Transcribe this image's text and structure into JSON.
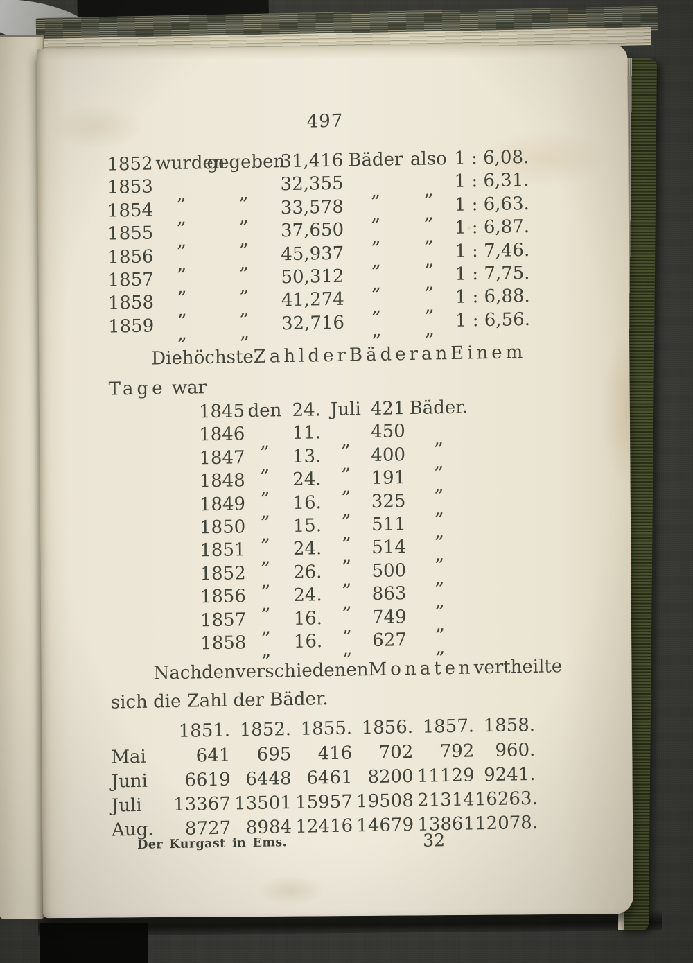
{
  "page": {
    "number": "497"
  },
  "table1": {
    "rows": [
      {
        "year": "1852",
        "w1": "wurden",
        "w2": "gegeben",
        "count": "31,416",
        "unit": "Bäder",
        "also": "also",
        "ratio": "1 : 6,08."
      },
      {
        "year": "1853",
        "w1": "„",
        "w2": "„",
        "count": "32,355",
        "unit": "„",
        "also": "„",
        "ratio": "1 : 6,31."
      },
      {
        "year": "1854",
        "w1": "„",
        "w2": "„",
        "count": "33,578",
        "unit": "„",
        "also": "„",
        "ratio": "1 : 6,63."
      },
      {
        "year": "1855",
        "w1": "„",
        "w2": "„",
        "count": "37,650",
        "unit": "„",
        "also": "„",
        "ratio": "1 : 6,87."
      },
      {
        "year": "1856",
        "w1": "„",
        "w2": "„",
        "count": "45,937",
        "unit": "„",
        "also": "„",
        "ratio": "1 : 7,46."
      },
      {
        "year": "1857",
        "w1": "„",
        "w2": "„",
        "count": "50,312",
        "unit": "„",
        "also": "„",
        "ratio": "1 : 7,75."
      },
      {
        "year": "1858",
        "w1": "„",
        "w2": "„",
        "count": "41,274",
        "unit": "„",
        "also": "„",
        "ratio": "1 : 6,88."
      },
      {
        "year": "1859",
        "w1": "„",
        "w2": "„",
        "count": "32,716",
        "unit": "„",
        "also": "„",
        "ratio": "1 : 6,56."
      }
    ]
  },
  "heading1": {
    "words": [
      "Die",
      "höchste",
      "Zahl",
      "der",
      "Bäder",
      "an",
      "Einem"
    ],
    "line2_emph": "Tage",
    "line2_rest": " war"
  },
  "table2": {
    "rows": [
      {
        "year": "1845",
        "den": "den",
        "day": "24.",
        "month": "Juli",
        "count": "421",
        "unit": "Bäder."
      },
      {
        "year": "1846",
        "den": "„",
        "day": "11.",
        "month": "„",
        "count": "450",
        "unit": "„"
      },
      {
        "year": "1847",
        "den": "„",
        "day": "13.",
        "month": "„",
        "count": "400",
        "unit": "„"
      },
      {
        "year": "1848",
        "den": "„",
        "day": "24.",
        "month": "„",
        "count": "191",
        "unit": "„"
      },
      {
        "year": "1849",
        "den": "„",
        "day": "16.",
        "month": "„",
        "count": "325",
        "unit": "„"
      },
      {
        "year": "1850",
        "den": "„",
        "day": "15.",
        "month": "„",
        "count": "511",
        "unit": "„"
      },
      {
        "year": "1851",
        "den": "„",
        "day": "24.",
        "month": "„",
        "count": "514",
        "unit": "„"
      },
      {
        "year": "1852",
        "den": "„",
        "day": "26.",
        "month": "„",
        "count": "500",
        "unit": "„"
      },
      {
        "year": "1856",
        "den": "„",
        "day": "24.",
        "month": "„",
        "count": "863",
        "unit": "„"
      },
      {
        "year": "1857",
        "den": "„",
        "day": "16.",
        "month": "„",
        "count": "749",
        "unit": "„"
      },
      {
        "year": "1858",
        "den": "„",
        "day": "16.",
        "month": "„",
        "count": "627",
        "unit": "„"
      }
    ]
  },
  "paragraph2": {
    "words": [
      "Nach",
      "den",
      "verschiedenen",
      "Monaten",
      "vertheilte"
    ],
    "line2": "sich die Zahl der Bäder."
  },
  "months_table": {
    "years": [
      "1851.",
      "1852.",
      "1855.",
      "1856.",
      "1857.",
      "1858."
    ],
    "rows": [
      {
        "month": "Mai",
        "values": [
          "641",
          "695",
          "416",
          "702",
          "792",
          "960."
        ]
      },
      {
        "month": "Juni",
        "values": [
          "6619",
          "6448",
          "6461",
          "8200",
          "11129",
          "9241."
        ]
      },
      {
        "month": "Juli",
        "values": [
          "13367",
          "13501",
          "15957",
          "19508",
          "21314",
          "16263."
        ]
      },
      {
        "month": "Aug.",
        "values": [
          "8727",
          "8984",
          "12416",
          "14679",
          "13861",
          "12078."
        ]
      }
    ]
  },
  "footer": {
    "imprint": "Der Kurgast in Ems.",
    "signature": "32"
  }
}
